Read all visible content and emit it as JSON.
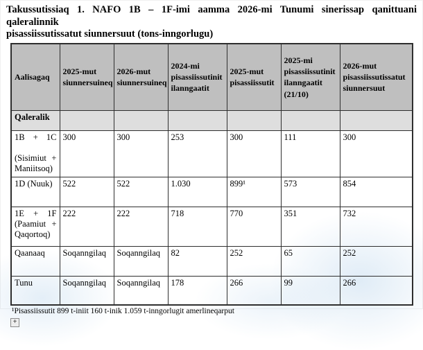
{
  "colors": {
    "header_bg": "#bfbfbf",
    "section_bg": "#dedede",
    "border": "#2e2e2e"
  },
  "title": {
    "line1": "Takussutissiaq 1. NAFO 1B – 1F-imi aamma 2026-mi Tunumi sinerissap qanittuani qaleralinnik",
    "line2": "pisassiissutissatut siunnersuut (tons-inngorlugu)"
  },
  "table": {
    "headers": [
      "Aalisagaq",
      "2025-mut\nsiunnersuineq",
      "2026-mut\nsiunnersuineq",
      "2024-mi\npisassiissutinit\nilanngaatit",
      "2025-mut\npisassiissutit",
      "2025-mi\npisassiissutinit\nilanngaatit\n(21/10)",
      "2026-mut\npisassiissutissatut\nsiunnersuut"
    ],
    "section_label": "Qaleralik",
    "rows": [
      {
        "label": "1B + 1C\n\n(Sisimiut +\nManiitsoq)",
        "values": [
          "300",
          "300",
          "253",
          "300",
          "111",
          "300"
        ]
      },
      {
        "label": "1D (Nuuk)",
        "values": [
          "522",
          "522",
          "1.030",
          "899¹",
          "573",
          "854"
        ]
      },
      {
        "label": "1E + 1F\n(Paamiut +\nQaqortoq)",
        "values": [
          "222",
          "222",
          "718",
          "770",
          "351",
          "732"
        ]
      },
      {
        "label": "Qaanaaq",
        "values": [
          "Soqanngilaq",
          "Soqanngilaq",
          "82",
          "252",
          "65",
          "252"
        ]
      },
      {
        "label": "Tunu",
        "values": [
          "Soqanngilaq",
          "Soqanngilaq",
          "178",
          "266",
          "99",
          "266"
        ]
      }
    ]
  },
  "footnote": "¹Pisassiissutit 899 t-iniit 160 t-inik 1.059 t-inngorlugit amerlineqarput",
  "icons": {
    "table_handle": "+"
  }
}
